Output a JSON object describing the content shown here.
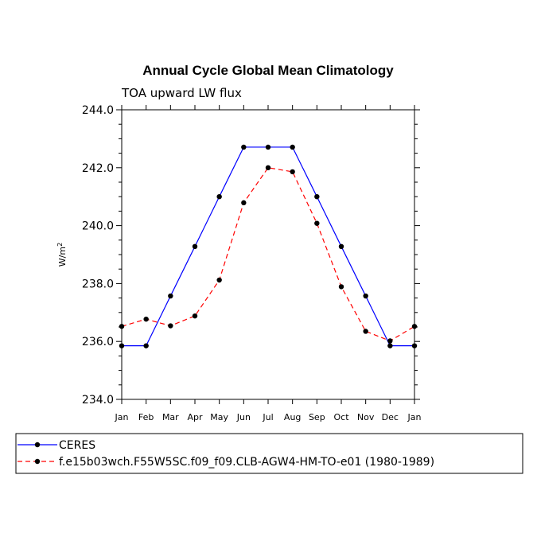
{
  "chart_data": {
    "type": "line",
    "title": "Annual Cycle Global Mean Climatology",
    "subtitle": "TOA upward LW flux",
    "ylabel_base": "W/m",
    "ylabel_sup": "2",
    "xlabel": "",
    "categories": [
      "Jan",
      "Feb",
      "Mar",
      "Apr",
      "May",
      "Jun",
      "Jul",
      "Aug",
      "Sep",
      "Oct",
      "Nov",
      "Dec",
      "Jan"
    ],
    "ylim": [
      234.0,
      244.0
    ],
    "yticks": [
      "234.0",
      "236.0",
      "238.0",
      "240.0",
      "242.0",
      "244.0"
    ],
    "legend_position": "bottom-left",
    "series": [
      {
        "name": "CERES",
        "color": "#0000ff",
        "style": "solid",
        "values": [
          235.85,
          235.85,
          237.57,
          239.28,
          241.0,
          242.71,
          242.71,
          242.71,
          241.0,
          239.28,
          237.57,
          235.85,
          235.85
        ]
      },
      {
        "name": "f.e15b03wch.F55W5SC.f09_f09.CLB-AGW4-HM-TO-e01 (1980-1989)",
        "color": "#ff0000",
        "style": "dashed",
        "values": [
          236.52,
          236.77,
          236.54,
          236.88,
          238.12,
          240.79,
          242.0,
          241.86,
          240.08,
          237.89,
          236.35,
          236.02,
          236.52
        ]
      }
    ]
  }
}
